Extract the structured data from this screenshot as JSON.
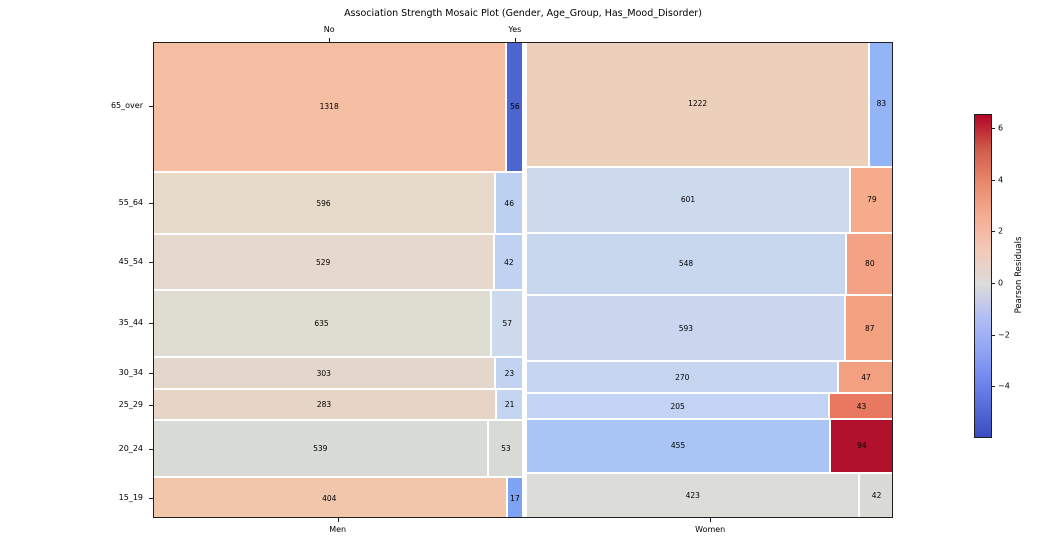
{
  "figure": {
    "title": "Association Strength Mosaic Plot (Gender, Age_Group, Has_Mood_Disorder)",
    "background_color": "#ffffff"
  },
  "chart_data": {
    "type": "mosaic",
    "x_variable": "Gender",
    "y_variable": "Age_Group",
    "inner_variable": "Has_Mood_Disorder",
    "x_categories": [
      "Men",
      "Women"
    ],
    "y_categories_top_to_bottom": [
      "65_over",
      "55_64",
      "45_54",
      "35_44",
      "30_34",
      "25_29",
      "20_24",
      "15_19"
    ],
    "inner_categories": [
      "No",
      "Yes"
    ],
    "grid": false,
    "series": [
      {
        "gender": "Men",
        "rows": [
          {
            "age": "65_over",
            "no": 1318,
            "yes": 56,
            "no_color": "#f5bda2",
            "yes_color": "#4d66cf"
          },
          {
            "age": "55_64",
            "no": 596,
            "yes": 46,
            "no_color": "#e8dac9",
            "yes_color": "#bcd0f2"
          },
          {
            "age": "45_54",
            "no": 529,
            "yes": 42,
            "no_color": "#e6d8cd",
            "yes_color": "#c0d2f2"
          },
          {
            "age": "35_44",
            "no": 635,
            "yes": 57,
            "no_color": "#dfdcd1",
            "yes_color": "#cdd9ec"
          },
          {
            "age": "30_34",
            "no": 303,
            "yes": 23,
            "no_color": "#e2d7ca",
            "yes_color": "#c2d3f2"
          },
          {
            "age": "25_29",
            "no": 283,
            "yes": 21,
            "no_color": "#e6d4c5",
            "yes_color": "#c4d5f1"
          },
          {
            "age": "20_24",
            "no": 539,
            "yes": 53,
            "no_color": "#d9dbd7",
            "yes_color": "#d8dad6"
          },
          {
            "age": "15_19",
            "no": 404,
            "yes": 17,
            "no_color": "#f2c6ab",
            "yes_color": "#7ea3f0"
          }
        ]
      },
      {
        "gender": "Women",
        "rows": [
          {
            "age": "65_over",
            "no": 1222,
            "yes": 83,
            "no_color": "#edd0bb",
            "yes_color": "#93b4f7"
          },
          {
            "age": "55_64",
            "no": 601,
            "yes": 79,
            "no_color": "#cdd9ed",
            "yes_color": "#f6ab8a"
          },
          {
            "age": "45_54",
            "no": 548,
            "yes": 80,
            "no_color": "#c9d7ee",
            "yes_color": "#f4a283"
          },
          {
            "age": "35_44",
            "no": 593,
            "yes": 87,
            "no_color": "#c9d6ee",
            "yes_color": "#f4a182"
          },
          {
            "age": "30_34",
            "no": 270,
            "yes": 47,
            "no_color": "#c6d5f0",
            "yes_color": "#f2a080"
          },
          {
            "age": "25_29",
            "no": 205,
            "yes": 43,
            "no_color": "#c2d3f3",
            "yes_color": "#e87960"
          },
          {
            "age": "20_24",
            "no": 455,
            "yes": 94,
            "no_color": "#a8c5f6",
            "yes_color": "#b2112d"
          },
          {
            "age": "15_19",
            "no": 423,
            "yes": 42,
            "no_color": "#dcdcd9",
            "yes_color": "#dadbd7"
          }
        ]
      }
    ],
    "colorbar": {
      "label": "Pearson Residuals",
      "colormap": "coolwarm",
      "vmin": -5.94,
      "vmax": 6.56,
      "ticks": [
        6,
        4,
        2,
        0,
        -2,
        -4
      ],
      "tick_labels": [
        "6",
        "4",
        "2",
        "0",
        "−2",
        "−4"
      ],
      "gradient_stops": [
        {
          "pos": "0%",
          "color": "#b40426"
        },
        {
          "pos": "10.5%",
          "color": "#ce5b4a"
        },
        {
          "pos": "21%",
          "color": "#e9886c"
        },
        {
          "pos": "31.6%",
          "color": "#f4ad94"
        },
        {
          "pos": "42.1%",
          "color": "#f3c9b9"
        },
        {
          "pos": "52.6%",
          "color": "#dcdcdb"
        },
        {
          "pos": "62.1%",
          "color": "#b4c0f3"
        },
        {
          "pos": "71.6%",
          "color": "#95a8f4"
        },
        {
          "pos": "81.1%",
          "color": "#758bef"
        },
        {
          "pos": "90.5%",
          "color": "#576cd9"
        },
        {
          "pos": "100%",
          "color": "#3b4cc0"
        }
      ]
    }
  }
}
